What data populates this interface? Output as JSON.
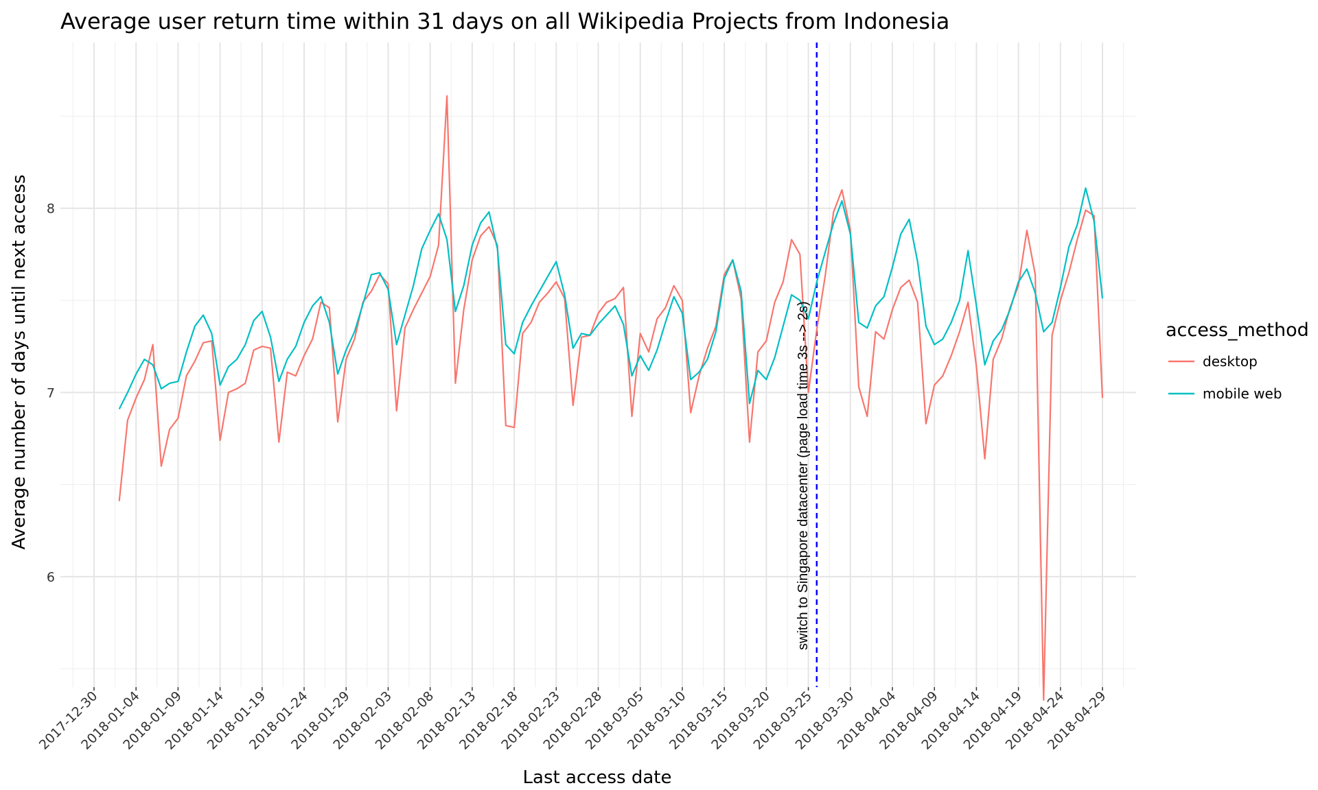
{
  "chart_data": {
    "type": "line",
    "title": "Average user return time within 31 days on all Wikipedia Projects from Indonesia",
    "xlabel": "Last access date",
    "ylabel": "Average number of days until next access",
    "x_start": "2018-01-02",
    "x_ticks": [
      "2017-12-30",
      "2018-01-04",
      "2018-01-09",
      "2018-01-14",
      "2018-01-19",
      "2018-01-24",
      "2018-01-29",
      "2018-02-03",
      "2018-02-08",
      "2018-02-13",
      "2018-02-18",
      "2018-02-23",
      "2018-02-28",
      "2018-03-05",
      "2018-03-10",
      "2018-03-15",
      "2018-03-20",
      "2018-03-25",
      "2018-03-30",
      "2018-04-04",
      "2018-04-09",
      "2018-04-14",
      "2018-04-19",
      "2018-04-24",
      "2018-04-29"
    ],
    "xlim": [
      "2017-12-26",
      "2018-05-03"
    ],
    "y_ticks": [
      6,
      7,
      8
    ],
    "ylim": [
      5.4,
      8.9
    ],
    "grid": true,
    "legend": {
      "title": "access_method",
      "position": "right"
    },
    "series": [
      {
        "name": "desktop",
        "color": "#F8766D",
        "values": [
          6.41,
          6.85,
          6.97,
          7.07,
          7.26,
          6.6,
          6.8,
          6.86,
          7.09,
          7.17,
          7.27,
          7.28,
          6.74,
          7.0,
          7.02,
          7.05,
          7.23,
          7.25,
          7.24,
          6.73,
          7.11,
          7.09,
          7.2,
          7.29,
          7.49,
          7.46,
          6.84,
          7.18,
          7.29,
          7.49,
          7.55,
          7.64,
          7.59,
          6.9,
          7.35,
          7.45,
          7.54,
          7.63,
          7.8,
          8.61,
          7.05,
          7.45,
          7.72,
          7.85,
          7.9,
          7.8,
          6.82,
          6.81,
          7.32,
          7.38,
          7.49,
          7.54,
          7.6,
          7.51,
          6.93,
          7.3,
          7.31,
          7.43,
          7.49,
          7.51,
          7.57,
          6.87,
          7.32,
          7.22,
          7.4,
          7.46,
          7.58,
          7.5,
          6.89,
          7.09,
          7.24,
          7.36,
          7.64,
          7.72,
          7.51,
          6.73,
          7.22,
          7.28,
          7.49,
          7.6,
          7.83,
          7.75,
          7.0,
          7.34,
          7.63,
          7.98,
          8.1,
          7.88,
          7.03,
          6.87,
          7.33,
          7.29,
          7.45,
          7.57,
          7.61,
          7.49,
          6.83,
          7.04,
          7.09,
          7.2,
          7.33,
          7.49,
          7.14,
          6.64,
          7.18,
          7.29,
          7.46,
          7.58,
          7.88,
          7.64,
          5.33,
          7.31,
          7.5,
          7.65,
          7.83,
          7.99,
          7.96,
          6.97
        ]
      },
      {
        "name": "mobile web",
        "color": "#00BFC4",
        "values": [
          6.91,
          7.0,
          7.1,
          7.18,
          7.15,
          7.02,
          7.05,
          7.06,
          7.22,
          7.36,
          7.42,
          7.32,
          7.04,
          7.14,
          7.18,
          7.26,
          7.39,
          7.44,
          7.3,
          7.06,
          7.18,
          7.25,
          7.38,
          7.47,
          7.52,
          7.38,
          7.1,
          7.23,
          7.33,
          7.48,
          7.64,
          7.65,
          7.56,
          7.26,
          7.42,
          7.58,
          7.78,
          7.88,
          7.97,
          7.83,
          7.44,
          7.58,
          7.8,
          7.92,
          7.98,
          7.78,
          7.26,
          7.21,
          7.38,
          7.47,
          7.55,
          7.63,
          7.71,
          7.53,
          7.24,
          7.32,
          7.31,
          7.37,
          7.42,
          7.47,
          7.37,
          7.09,
          7.2,
          7.12,
          7.23,
          7.38,
          7.52,
          7.43,
          7.07,
          7.11,
          7.18,
          7.33,
          7.62,
          7.72,
          7.55,
          6.94,
          7.12,
          7.07,
          7.19,
          7.36,
          7.53,
          7.5,
          7.4,
          7.6,
          7.76,
          7.92,
          8.04,
          7.86,
          7.38,
          7.35,
          7.47,
          7.52,
          7.68,
          7.86,
          7.94,
          7.71,
          7.36,
          7.26,
          7.29,
          7.38,
          7.5,
          7.77,
          7.47,
          7.15,
          7.28,
          7.34,
          7.45,
          7.6,
          7.67,
          7.54,
          7.33,
          7.38,
          7.57,
          7.79,
          7.91,
          8.11,
          7.93,
          7.51
        ]
      }
    ],
    "annotations": [
      {
        "x": "2018-03-26",
        "color": "#0000FF",
        "line": "dashed",
        "label": "switch to Singapore datacenter (page load time 3s --> 2s)"
      }
    ]
  }
}
